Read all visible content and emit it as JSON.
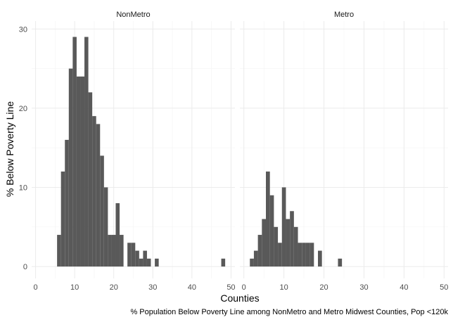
{
  "chart_data": {
    "type": "bar",
    "subtype": "faceted-histogram",
    "bin_width": 1,
    "xlabel": "Counties",
    "ylabel": "% Below Poverty Line",
    "caption": "% Population Below Poverty Line among NonMetro and Metro Midwest Counties, Pop <120k",
    "xlim": [
      -1,
      51
    ],
    "ylim": [
      -1.5,
      31
    ],
    "x_ticks": [
      0,
      10,
      20,
      30,
      40,
      50
    ],
    "y_ticks": [
      0,
      10,
      20,
      30
    ],
    "grid": true,
    "bar_color": "#595959",
    "facets": [
      {
        "name": "NonMetro",
        "bins": [
          {
            "x": 6,
            "count": 4
          },
          {
            "x": 7,
            "count": 12
          },
          {
            "x": 8,
            "count": 16
          },
          {
            "x": 9,
            "count": 25
          },
          {
            "x": 10,
            "count": 29
          },
          {
            "x": 11,
            "count": 24
          },
          {
            "x": 12,
            "count": 24
          },
          {
            "x": 13,
            "count": 29
          },
          {
            "x": 14,
            "count": 22
          },
          {
            "x": 15,
            "count": 19
          },
          {
            "x": 16,
            "count": 18
          },
          {
            "x": 17,
            "count": 14
          },
          {
            "x": 18,
            "count": 10
          },
          {
            "x": 19,
            "count": 4
          },
          {
            "x": 20,
            "count": 4
          },
          {
            "x": 21,
            "count": 8
          },
          {
            "x": 22,
            "count": 4
          },
          {
            "x": 24,
            "count": 3
          },
          {
            "x": 25,
            "count": 3
          },
          {
            "x": 26,
            "count": 2
          },
          {
            "x": 27,
            "count": 1
          },
          {
            "x": 28,
            "count": 2
          },
          {
            "x": 29,
            "count": 1
          },
          {
            "x": 31,
            "count": 1
          },
          {
            "x": 48,
            "count": 1
          }
        ]
      },
      {
        "name": "Metro",
        "bins": [
          {
            "x": 2,
            "count": 1
          },
          {
            "x": 3,
            "count": 2
          },
          {
            "x": 4,
            "count": 4
          },
          {
            "x": 5,
            "count": 6
          },
          {
            "x": 6,
            "count": 12
          },
          {
            "x": 7,
            "count": 9
          },
          {
            "x": 8,
            "count": 5
          },
          {
            "x": 9,
            "count": 3
          },
          {
            "x": 10,
            "count": 10
          },
          {
            "x": 11,
            "count": 6
          },
          {
            "x": 12,
            "count": 7
          },
          {
            "x": 13,
            "count": 5
          },
          {
            "x": 14,
            "count": 3
          },
          {
            "x": 15,
            "count": 3
          },
          {
            "x": 16,
            "count": 3
          },
          {
            "x": 17,
            "count": 3
          },
          {
            "x": 19,
            "count": 2
          },
          {
            "x": 24,
            "count": 1
          }
        ]
      }
    ]
  }
}
